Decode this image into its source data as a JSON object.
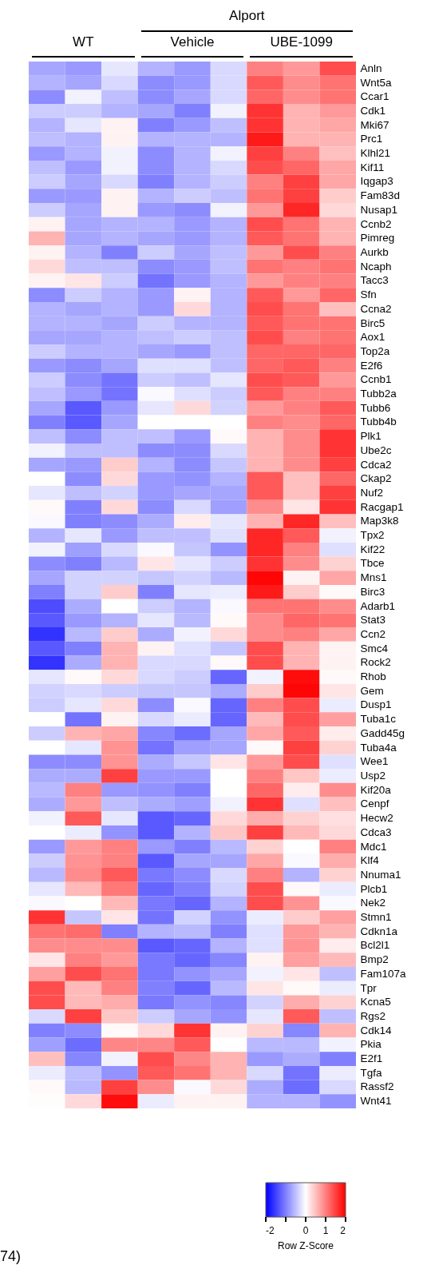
{
  "chart_data": {
    "type": "heatmap",
    "annotations": [
      "WT",
      "Vehicle",
      "UBE-1099",
      "Alport",
      "74)"
    ],
    "clabel": "Row Z-Score",
    "categories": [
      null,
      null,
      null,
      null,
      null,
      null,
      null,
      null,
      null
    ],
    "y_categories": [
      "Anln",
      "Wnt5a",
      "Ccar1",
      "Cdk1",
      "Mki67",
      "Prc1",
      "Klhl21",
      "Kif11",
      "Iqgap3",
      "Fam83d",
      "Nusap1",
      "Ccnb2",
      "Pimreg",
      "Aurkb",
      "Ncaph",
      "Tacc3",
      "Sfn",
      "Ccna2",
      "Birc5",
      "Aox1",
      "Top2a",
      "E2f6",
      "Ccnb1",
      "Tubb2a",
      "Tubb6",
      "Tubb4b",
      "Plk1",
      "Ube2c",
      "Cdca2",
      "Ckap2",
      "Nuf2",
      "Racgap1",
      "Map3k8",
      "Tpx2",
      "Kif22",
      "Tbce",
      "Mns1",
      "Birc3",
      "Adarb1",
      "Stat3",
      "Ccn2",
      "Smc4",
      "Rock2",
      "Rhob",
      "Gem",
      "Dusp1",
      "Tuba1c",
      "Gadd45g",
      "Tuba4a",
      "Wee1",
      "Usp2",
      "Kif20a",
      "Cenpf",
      "Hecw2",
      "Cdca3",
      "Mdc1",
      "Klf4",
      "Nnuma1",
      "Plcb1",
      "Nek2",
      "Stmn1",
      "Cdkn1a",
      "Bcl2l1",
      "Bmp2",
      "Fam107a",
      "Tpr",
      "Kcna5",
      "Rgs2",
      "Cdk14",
      "Pkia",
      "E2f1",
      "Tgfa",
      "Rassf2",
      "Wnt41"
    ],
    "cells": [
      [
        -0.7,
        -0.8,
        -0.2,
        -0.6,
        -0.8,
        -0.3,
        1.0,
        0.8,
        1.4
      ],
      [
        -0.6,
        -0.7,
        -0.3,
        -0.9,
        -0.8,
        -0.3,
        1.3,
        0.9,
        1.1
      ],
      [
        -0.9,
        -0.1,
        -0.5,
        -0.9,
        -0.7,
        -0.3,
        1.2,
        0.9,
        1.1
      ],
      [
        -0.4,
        -0.4,
        -0.6,
        -0.7,
        -1.0,
        -0.1,
        1.6,
        0.6,
        0.8
      ],
      [
        -0.6,
        -0.2,
        0.1,
        -1.0,
        -0.8,
        -0.5,
        1.6,
        0.6,
        0.7
      ],
      [
        -0.5,
        -0.6,
        0.1,
        -0.6,
        -0.6,
        -0.6,
        1.8,
        0.6,
        0.6
      ],
      [
        -0.8,
        -0.6,
        -0.1,
        -0.9,
        -0.6,
        -0.1,
        1.5,
        1.0,
        0.5
      ],
      [
        -0.5,
        -0.8,
        -0.1,
        -0.9,
        -0.6,
        -0.3,
        1.4,
        1.2,
        0.7
      ],
      [
        -0.4,
        -0.7,
        -0.3,
        -1.0,
        -0.6,
        -0.4,
        1.0,
        1.5,
        0.7
      ],
      [
        -0.8,
        -0.8,
        0.1,
        -0.6,
        -0.4,
        -0.5,
        1.1,
        1.5,
        0.4
      ],
      [
        -0.4,
        -0.7,
        0.1,
        -0.8,
        -0.9,
        -0.1,
        0.8,
        1.7,
        0.3
      ],
      [
        0.1,
        -0.7,
        -0.6,
        -0.6,
        -0.8,
        -0.6,
        1.4,
        1.1,
        0.6
      ],
      [
        0.6,
        -0.7,
        -0.6,
        -0.7,
        -0.8,
        -0.6,
        1.3,
        1.1,
        0.6
      ],
      [
        0.1,
        -0.6,
        -1.0,
        -0.4,
        -0.7,
        -0.5,
        0.8,
        1.4,
        1.0
      ],
      [
        0.3,
        -0.5,
        -0.5,
        -0.9,
        -0.8,
        -0.5,
        1.1,
        1.0,
        1.1
      ],
      [
        0.1,
        0.2,
        -0.4,
        -1.1,
        -0.8,
        -0.6,
        0.8,
        1.0,
        1.0
      ],
      [
        -0.9,
        -0.4,
        -0.6,
        -0.8,
        0.1,
        -0.6,
        1.3,
        0.8,
        1.2
      ],
      [
        -0.6,
        -0.7,
        -0.6,
        -0.8,
        0.3,
        -0.6,
        1.4,
        1.1,
        0.5
      ],
      [
        -0.6,
        -0.6,
        -0.7,
        -0.4,
        -0.6,
        -0.6,
        1.3,
        1.1,
        1.1
      ],
      [
        -0.7,
        -0.7,
        -0.6,
        -0.5,
        -0.4,
        -0.5,
        1.4,
        1.0,
        1.1
      ],
      [
        -0.4,
        -0.6,
        -0.6,
        -0.7,
        -0.8,
        -0.5,
        1.2,
        1.2,
        1.2
      ],
      [
        -0.8,
        -0.9,
        -0.7,
        -0.25,
        -0.25,
        -0.5,
        1.2,
        1.3,
        1.0
      ],
      [
        -0.4,
        -0.9,
        -1.1,
        -0.4,
        -0.5,
        -0.2,
        1.4,
        1.3,
        0.8
      ],
      [
        -0.5,
        -0.8,
        -1.1,
        -0.05,
        -0.25,
        -0.4,
        1.3,
        1.0,
        1.0
      ],
      [
        -0.7,
        -1.3,
        -0.8,
        -0.2,
        0.3,
        -0.35,
        0.8,
        1.0,
        1.3
      ],
      [
        -1.0,
        -1.3,
        -0.7,
        0.0,
        0.0,
        0.0,
        1.0,
        0.9,
        1.2
      ],
      [
        -0.5,
        -0.9,
        -0.5,
        -0.5,
        -0.8,
        0.05,
        0.6,
        0.9,
        1.6
      ],
      [
        -0.1,
        -0.5,
        -0.5,
        -0.9,
        -0.9,
        -0.3,
        0.6,
        0.9,
        1.6
      ],
      [
        -0.7,
        -0.8,
        0.4,
        -0.6,
        -0.9,
        -0.45,
        0.6,
        0.9,
        1.5
      ],
      [
        0.0,
        -0.9,
        0.3,
        -0.8,
        -0.85,
        -0.6,
        1.3,
        0.5,
        1.2
      ],
      [
        -0.2,
        -0.5,
        -0.35,
        -0.8,
        -0.7,
        -0.7,
        1.3,
        0.5,
        1.5
      ],
      [
        0.05,
        -1.0,
        0.3,
        -0.9,
        -0.3,
        -0.75,
        0.9,
        0.2,
        1.6
      ],
      [
        -0.05,
        -1.0,
        -0.9,
        -0.65,
        0.15,
        -0.2,
        0.6,
        1.7,
        0.5
      ],
      [
        -0.6,
        -0.2,
        -0.8,
        -0.5,
        -0.5,
        -0.25,
        1.7,
        1.3,
        -0.1
      ],
      [
        -0.1,
        -0.75,
        -0.3,
        -0.05,
        -0.45,
        -0.85,
        1.7,
        1.0,
        -0.25
      ],
      [
        -0.9,
        -1.0,
        -0.55,
        0.2,
        -0.2,
        -0.4,
        1.6,
        0.9,
        0.35
      ],
      [
        -0.7,
        -0.35,
        -0.35,
        -0.45,
        -0.35,
        -0.55,
        1.95,
        0.1,
        0.7
      ],
      [
        -1.0,
        -0.35,
        0.4,
        -1.0,
        -0.2,
        -0.15,
        1.8,
        0.4,
        0.05
      ],
      [
        -1.4,
        -0.65,
        0.0,
        -0.4,
        -0.6,
        -0.05,
        1.1,
        1.1,
        0.9
      ],
      [
        -1.3,
        -0.8,
        -0.6,
        -0.2,
        -0.55,
        0.05,
        0.9,
        1.2,
        1.1
      ],
      [
        -1.6,
        -0.55,
        0.4,
        -0.65,
        -0.1,
        0.3,
        0.9,
        1.0,
        0.7
      ],
      [
        -1.3,
        -1.0,
        0.6,
        0.1,
        -0.25,
        -0.45,
        1.4,
        0.6,
        0.1
      ],
      [
        -1.6,
        -0.65,
        0.6,
        -0.3,
        -0.3,
        0.05,
        1.4,
        0.6,
        0.1
      ],
      [
        -0.2,
        0.05,
        0.3,
        -0.3,
        -0.4,
        -1.2,
        -0.1,
        1.9,
        0.05
      ],
      [
        -0.35,
        -0.3,
        -0.4,
        -0.45,
        -0.45,
        -0.65,
        0.4,
        1.95,
        0.2
      ],
      [
        -0.4,
        -0.2,
        0.3,
        -0.9,
        -0.05,
        -1.2,
        1.0,
        1.4,
        -0.15
      ],
      [
        0.0,
        -1.1,
        0.1,
        -0.3,
        -0.15,
        -1.2,
        0.55,
        1.4,
        0.75
      ],
      [
        -0.4,
        0.6,
        0.7,
        -0.95,
        -1.15,
        -0.7,
        0.7,
        1.3,
        0.15
      ],
      [
        0.0,
        -0.2,
        0.85,
        -1.1,
        -0.75,
        -0.7,
        0.05,
        1.5,
        0.35
      ],
      [
        -0.9,
        -0.9,
        0.85,
        -0.65,
        -0.45,
        0.2,
        0.8,
        1.4,
        -0.25
      ],
      [
        -0.65,
        -0.65,
        1.5,
        -0.8,
        -0.8,
        0.0,
        1.0,
        0.45,
        -0.15
      ],
      [
        -0.55,
        1.0,
        -0.8,
        -0.85,
        -1.0,
        0.0,
        1.2,
        0.15,
        0.9
      ],
      [
        -0.65,
        0.8,
        -0.5,
        -0.65,
        -0.75,
        -0.1,
        1.6,
        -0.25,
        0.5
      ],
      [
        -0.1,
        1.3,
        -0.2,
        -1.3,
        -1.2,
        0.3,
        0.65,
        0.35,
        0.25
      ],
      [
        0.0,
        -0.15,
        -0.85,
        -1.3,
        -0.6,
        0.45,
        1.5,
        0.55,
        0.3
      ],
      [
        -0.8,
        0.8,
        1.0,
        -0.8,
        -1.0,
        -0.55,
        0.35,
        0.0,
        1.0
      ],
      [
        -0.4,
        0.85,
        1.0,
        -1.3,
        -0.7,
        -0.7,
        0.7,
        -0.05,
        0.65
      ],
      [
        -0.55,
        0.9,
        1.3,
        -1.05,
        -0.9,
        -0.3,
        1.0,
        -0.6,
        0.35
      ],
      [
        -0.2,
        0.55,
        1.05,
        -1.2,
        -1.0,
        -0.35,
        1.4,
        0.05,
        -0.15
      ],
      [
        -0.05,
        0.0,
        0.55,
        -1.05,
        -1.2,
        -0.6,
        1.4,
        0.85,
        -0.05
      ],
      [
        1.6,
        -0.45,
        0.2,
        -1.1,
        -0.35,
        -0.85,
        -0.15,
        0.4,
        0.75
      ],
      [
        1.1,
        1.15,
        -1.0,
        -0.6,
        -0.55,
        -1.0,
        -0.25,
        0.8,
        0.6
      ],
      [
        0.9,
        0.9,
        0.9,
        -1.3,
        -1.2,
        -0.6,
        -0.25,
        0.85,
        0.15
      ],
      [
        0.2,
        1.0,
        0.8,
        -1.05,
        -1.2,
        -0.95,
        0.1,
        0.75,
        0.55
      ],
      [
        0.75,
        1.4,
        1.1,
        -1.05,
        -0.85,
        -0.7,
        -0.1,
        0.2,
        -0.5
      ],
      [
        1.4,
        0.55,
        1.0,
        -1.0,
        -1.2,
        -0.55,
        0.2,
        0.05,
        -0.15
      ],
      [
        1.4,
        0.55,
        0.65,
        -1.05,
        -0.85,
        -0.95,
        -0.35,
        0.65,
        0.35
      ],
      [
        -0.3,
        1.5,
        0.45,
        -0.4,
        -0.7,
        -0.85,
        -0.2,
        1.3,
        -0.5
      ],
      [
        -1.0,
        -0.9,
        0.05,
        0.3,
        1.6,
        0.1,
        0.35,
        -0.95,
        0.6
      ],
      [
        -0.75,
        -1.15,
        0.95,
        0.95,
        1.3,
        0.0,
        -0.55,
        -0.55,
        -0.1
      ],
      [
        0.5,
        -0.95,
        -0.1,
        1.4,
        0.95,
        0.6,
        -0.8,
        -0.65,
        -1.0
      ],
      [
        -0.15,
        -0.5,
        -0.85,
        1.3,
        1.1,
        0.6,
        -0.3,
        -1.1,
        -0.15
      ],
      [
        0.05,
        -0.55,
        1.5,
        0.9,
        -0.05,
        0.3,
        -0.65,
        -1.15,
        -0.3
      ],
      [
        0.02,
        0.3,
        1.9,
        -0.15,
        0.1,
        0.1,
        -0.6,
        -0.6,
        -0.85
      ]
    ],
    "clim": [
      -2,
      2
    ],
    "cticks": [
      -2,
      {
        "value": -1,
        "label": null
      },
      0,
      1,
      2
    ]
  }
}
